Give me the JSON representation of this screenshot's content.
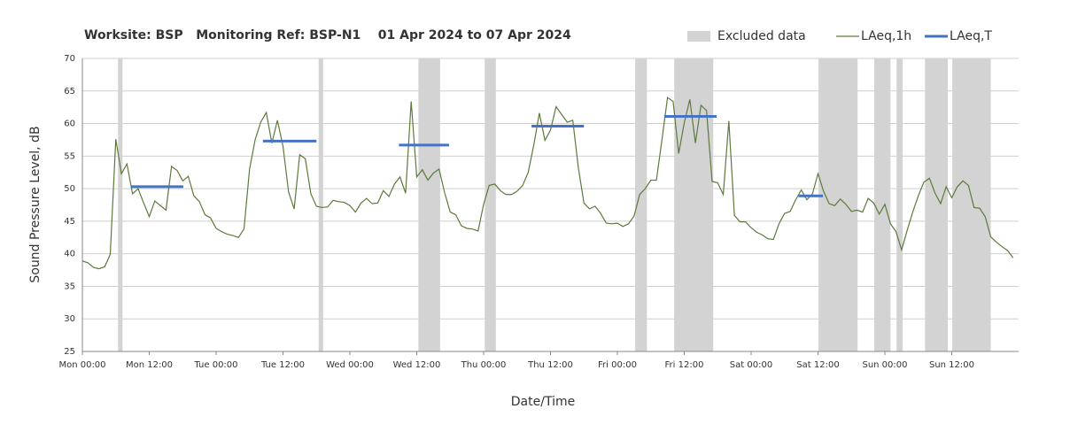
{
  "chart_data": {
    "type": "line",
    "title": "Worksite: BSP   Monitoring Ref: BSP-N1    01 Apr 2024 to 07 Apr 2024",
    "xlabel": "Date/Time",
    "ylabel": "Sound Pressure Level, dB",
    "xlim": [
      0,
      168
    ],
    "ylim": [
      25,
      70
    ],
    "yticks": [
      25,
      30,
      35,
      40,
      45,
      50,
      55,
      60,
      65,
      70
    ],
    "xticks": [
      {
        "value": 0,
        "label": "Mon 00:00"
      },
      {
        "value": 12,
        "label": "Mon 12:00"
      },
      {
        "value": 24,
        "label": "Tue 00:00"
      },
      {
        "value": 36,
        "label": "Tue 12:00"
      },
      {
        "value": 48,
        "label": "Wed 00:00"
      },
      {
        "value": 60,
        "label": "Wed 12:00"
      },
      {
        "value": 72,
        "label": "Thu 00:00"
      },
      {
        "value": 84,
        "label": "Thu 12:00"
      },
      {
        "value": 96,
        "label": "Fri 00:00"
      },
      {
        "value": 108,
        "label": "Fri 12:00"
      },
      {
        "value": 120,
        "label": "Sat 00:00"
      },
      {
        "value": 132,
        "label": "Sat 12:00"
      },
      {
        "value": 144,
        "label": "Sun 00:00"
      },
      {
        "value": 156,
        "label": "Sun 12:00"
      }
    ],
    "grid": true,
    "excluded": {
      "name": "Excluded data",
      "color": "#d3d3d3",
      "ranges": [
        [
          6.4,
          7.2
        ],
        [
          42.4,
          43.2
        ],
        [
          60.3,
          64.2
        ],
        [
          72.2,
          74.2
        ],
        [
          99.2,
          101.3
        ],
        [
          106.2,
          113.2
        ],
        [
          132.1,
          139.1
        ],
        [
          142.1,
          145
        ],
        [
          146.1,
          147.2
        ],
        [
          151.2,
          155.3
        ],
        [
          156.1,
          163
        ]
      ]
    },
    "x": [
      0,
      1,
      2,
      3,
      4,
      5,
      6,
      7,
      8,
      9,
      10,
      11,
      12,
      13,
      14,
      15,
      16,
      17,
      18,
      19,
      20,
      21,
      22,
      23,
      24,
      25,
      26,
      27,
      28,
      29,
      30,
      31,
      32,
      33,
      34,
      35,
      36,
      37,
      38,
      39,
      40,
      41,
      42,
      43,
      44,
      45,
      46,
      47,
      48,
      49,
      50,
      51,
      52,
      53,
      54,
      55,
      56,
      57,
      58,
      59,
      60,
      61,
      62,
      63,
      64,
      65,
      66,
      67,
      68,
      69,
      70,
      71,
      72,
      73,
      74,
      75,
      76,
      77,
      78,
      79,
      80,
      81,
      82,
      83,
      84,
      85,
      86,
      87,
      88,
      89,
      90,
      91,
      92,
      93,
      94,
      95,
      96,
      97,
      98,
      99,
      100,
      101,
      102,
      103,
      104,
      105,
      106,
      107,
      108,
      109,
      110,
      111,
      112,
      113,
      114,
      115,
      116,
      117,
      118,
      119,
      120,
      121,
      122,
      123,
      124,
      125,
      126,
      127,
      128,
      129,
      130,
      131,
      132,
      133,
      134,
      135,
      136,
      137,
      138,
      139,
      140,
      141,
      142,
      143,
      144,
      145,
      146,
      147,
      148,
      149,
      150,
      151,
      152,
      153,
      154,
      155,
      156,
      157,
      158,
      159,
      160,
      161,
      162,
      163,
      164,
      165,
      166,
      167
    ],
    "series": [
      {
        "name": "LAeq,1h",
        "color": "#5b7a3c",
        "values": [
          38.9,
          38.6,
          37.9,
          37.7,
          38.0,
          39.9,
          57.6,
          52.3,
          53.8,
          49.2,
          50.0,
          47.8,
          45.7,
          48.1,
          47.4,
          46.7,
          53.4,
          52.8,
          51.2,
          51.9,
          48.9,
          48.0,
          46.0,
          45.5,
          43.9,
          43.4,
          43.0,
          42.8,
          42.5,
          43.8,
          53.0,
          57.5,
          60.2,
          61.7,
          57.0,
          60.5,
          56.5,
          49.5,
          46.9,
          55.2,
          54.6,
          49.2,
          47.3,
          47.1,
          47.2,
          48.2,
          48.0,
          47.9,
          47.4,
          46.4,
          47.8,
          48.5,
          47.7,
          47.8,
          49.7,
          48.8,
          50.7,
          51.8,
          49.3,
          63.4,
          51.8,
          52.9,
          51.3,
          52.4,
          53.0,
          49.4,
          46.4,
          46.0,
          44.3,
          43.9,
          43.8,
          43.5,
          47.6,
          50.5,
          50.7,
          49.7,
          49.1,
          49.1,
          49.6,
          50.5,
          52.5,
          56.7,
          61.6,
          57.4,
          59.0,
          62.6,
          61.4,
          60.2,
          60.5,
          53.2,
          47.8,
          46.9,
          47.3,
          46.2,
          44.7,
          44.6,
          44.7,
          44.2,
          44.6,
          45.8,
          49.1,
          50.0,
          51.3,
          51.3,
          57.5,
          64.0,
          63.4,
          55.4,
          60.1,
          63.7,
          57.0,
          62.8,
          62.0,
          51.1,
          50.9,
          49.1,
          60.4,
          45.9,
          44.9,
          44.9,
          44.0,
          43.3,
          42.9,
          42.3,
          42.2,
          44.6,
          46.2,
          46.5,
          48.3,
          49.8,
          48.3,
          49.2,
          52.3,
          49.6,
          47.7,
          47.4,
          48.4,
          47.6,
          46.5,
          46.7,
          46.4,
          48.5,
          47.8,
          46.1,
          47.6,
          44.6,
          43.4,
          40.6,
          43.6,
          46.4,
          48.9,
          51.0,
          51.6,
          49.3,
          47.7,
          50.3,
          48.6,
          50.3,
          51.2,
          50.5,
          47.1,
          47.0,
          45.7,
          42.6,
          41.8,
          41.1,
          40.5,
          39.4
        ]
      },
      {
        "name": "LAeq,T",
        "color": "#4472c4",
        "segments": [
          {
            "start": 8.7,
            "end": 18.1,
            "value": 50.3
          },
          {
            "start": 32.4,
            "end": 42,
            "value": 57.3
          },
          {
            "start": 56.8,
            "end": 65.8,
            "value": 56.7
          },
          {
            "start": 80.6,
            "end": 90,
            "value": 59.6
          },
          {
            "start": 104.4,
            "end": 113.8,
            "value": 61.1
          },
          {
            "start": 128.5,
            "end": 132.9,
            "value": 48.9
          }
        ]
      }
    ]
  }
}
